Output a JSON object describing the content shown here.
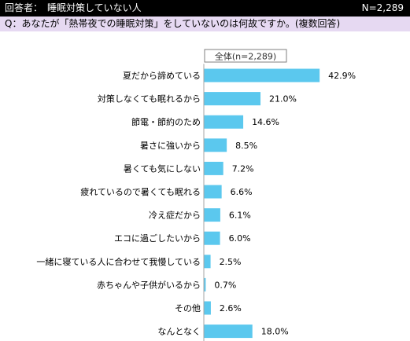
{
  "header": {
    "respondent_label": "回答者：　睡眠対策していない人",
    "sample_size": "N=2,289"
  },
  "question": "Q：あなたが「熱帯夜での睡眠対策」をしていないのは何故ですか。(複数回答)",
  "chart_data": {
    "type": "bar",
    "orientation": "horizontal",
    "series": [
      {
        "name": "全体(n=2,289)",
        "values": [
          42.9,
          21.0,
          14.6,
          8.5,
          7.2,
          6.6,
          6.1,
          6.0,
          2.5,
          0.7,
          2.6,
          18.0
        ]
      }
    ],
    "categories": [
      "夏だから諦めている",
      "対策しなくても眠れるから",
      "節電・節約のため",
      "暑さに強いから",
      "暑くても気にしない",
      "疲れているので暑くても眠れる",
      "冷え症だから",
      "エコに過ごしたいから",
      "一緒に寝ている人に合わせて我慢している",
      "赤ちゃんや子供がいるから",
      "その他",
      "なんとなく"
    ],
    "value_labels": [
      "42.9%",
      "21.0%",
      "14.6%",
      "8.5%",
      "7.2%",
      "6.6%",
      "6.1%",
      "6.0%",
      "2.5%",
      "0.7%",
      "2.6%",
      "18.0%"
    ],
    "unit": "%",
    "bar_color": "#5bc8ee",
    "axis_color": "#a6a6a6",
    "legend_placement": "top-center",
    "grid": false
  }
}
